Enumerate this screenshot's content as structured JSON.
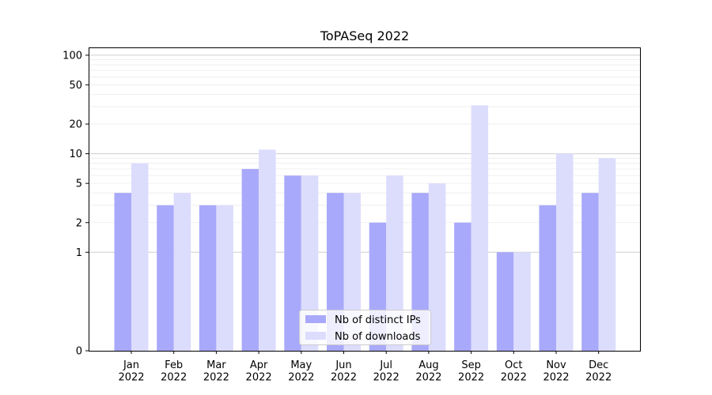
{
  "chart_data": {
    "type": "bar",
    "title": "ToPASeq 2022",
    "xlabel": "",
    "ylabel": "",
    "y_scale": "symlog",
    "ylim": [
      0,
      120
    ],
    "y_ticks": [
      0,
      1,
      2,
      5,
      10,
      20,
      50,
      100
    ],
    "y_tick_labels": [
      "0",
      "1",
      "2",
      "5",
      "10",
      "20",
      "50",
      "100"
    ],
    "grid": "horizontal",
    "legend_position": "bottom-center",
    "categories": [
      "Jan\n2022",
      "Feb\n2022",
      "Mar\n2022",
      "Apr\n2022",
      "May\n2022",
      "Jun\n2022",
      "Jul\n2022",
      "Aug\n2022",
      "Sep\n2022",
      "Oct\n2022",
      "Nov\n2022",
      "Dec\n2022"
    ],
    "category_labels": [
      [
        "Jan",
        "2022"
      ],
      [
        "Feb",
        "2022"
      ],
      [
        "Mar",
        "2022"
      ],
      [
        "Apr",
        "2022"
      ],
      [
        "May",
        "2022"
      ],
      [
        "Jun",
        "2022"
      ],
      [
        "Jul",
        "2022"
      ],
      [
        "Aug",
        "2022"
      ],
      [
        "Sep",
        "2022"
      ],
      [
        "Oct",
        "2022"
      ],
      [
        "Nov",
        "2022"
      ],
      [
        "Dec",
        "2022"
      ]
    ],
    "series": [
      {
        "name": "Nb of distinct IPs",
        "color": "#a9a9fb",
        "values": [
          4,
          3,
          3,
          7,
          6,
          4,
          2,
          4,
          2,
          1,
          3,
          4
        ]
      },
      {
        "name": "Nb of downloads",
        "color": "#dcdcfd",
        "values": [
          8,
          4,
          3,
          11,
          6,
          4,
          6,
          5,
          31,
          1,
          10,
          9
        ]
      }
    ]
  }
}
